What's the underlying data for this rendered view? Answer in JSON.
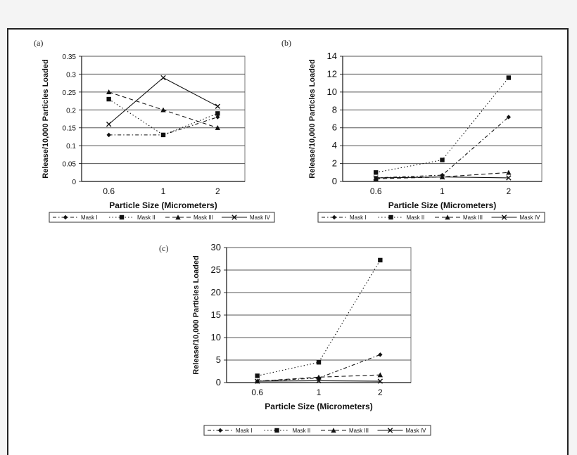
{
  "panels": [
    {
      "label": "(a)"
    },
    {
      "label": "(b)"
    },
    {
      "label": "(c)"
    }
  ],
  "chart_data": [
    {
      "type": "line",
      "panel": "(a)",
      "categories": [
        "0.6",
        "1",
        "2"
      ],
      "xlabel": "Particle Size (Micrometers)",
      "ylabel": "Release/10,000 Particles Loaded",
      "ylim": [
        0,
        0.35
      ],
      "yticks": [
        "0",
        "0.05",
        "0.1",
        "0.15",
        "0.2",
        "0.25",
        "0.3",
        "0.35"
      ],
      "grid": true,
      "legend_position": "bottom",
      "series": [
        {
          "name": "Mask I",
          "values": [
            0.13,
            0.13,
            0.18
          ]
        },
        {
          "name": "Mask II",
          "values": [
            0.23,
            0.13,
            0.19
          ]
        },
        {
          "name": "Mask III",
          "values": [
            0.25,
            0.2,
            0.15
          ]
        },
        {
          "name": "Mask IV",
          "values": [
            0.16,
            0.29,
            0.21
          ]
        }
      ]
    },
    {
      "type": "line",
      "panel": "(b)",
      "categories": [
        "0.6",
        "1",
        "2"
      ],
      "xlabel": "Particle Size (Micrometers)",
      "ylabel": "Release/10,000 Particles Loaded",
      "ylim": [
        0,
        14
      ],
      "yticks": [
        "0",
        "2",
        "4",
        "6",
        "8",
        "10",
        "12",
        "14"
      ],
      "grid": true,
      "legend_position": "bottom",
      "series": [
        {
          "name": "Mask I",
          "values": [
            0.4,
            0.7,
            7.2
          ]
        },
        {
          "name": "Mask II",
          "values": [
            1.0,
            2.4,
            11.6
          ]
        },
        {
          "name": "Mask III",
          "values": [
            0.3,
            0.5,
            1.0
          ]
        },
        {
          "name": "Mask IV",
          "values": [
            0.4,
            0.5,
            0.4
          ]
        }
      ]
    },
    {
      "type": "line",
      "panel": "(c)",
      "categories": [
        "0.6",
        "1",
        "2"
      ],
      "xlabel": "Particle Size (Micrometers)",
      "ylabel": "Release/10,000 Particles Loaded",
      "ylim": [
        0,
        30
      ],
      "yticks": [
        "0",
        "5",
        "10",
        "15",
        "20",
        "25",
        "30"
      ],
      "grid": true,
      "legend_position": "bottom",
      "series": [
        {
          "name": "Mask I",
          "values": [
            0.3,
            1.0,
            6.2
          ]
        },
        {
          "name": "Mask II",
          "values": [
            1.5,
            4.5,
            27.2
          ]
        },
        {
          "name": "Mask III",
          "values": [
            0.3,
            1.2,
            1.7
          ]
        },
        {
          "name": "Mask IV",
          "values": [
            0.3,
            0.4,
            0.3
          ]
        }
      ]
    }
  ]
}
